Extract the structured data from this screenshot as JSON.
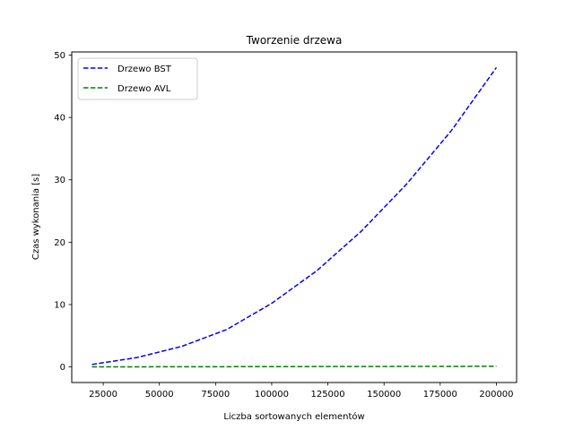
{
  "chart_data": {
    "type": "line",
    "title": "Tworzenie drzewa",
    "xlabel": "Liczba sortowanych elementów",
    "ylabel": "Czas wykonania [s]",
    "xlim": [
      11000,
      209000
    ],
    "ylim": [
      -2.5,
      50.5
    ],
    "xticks": [
      25000,
      50000,
      75000,
      100000,
      125000,
      150000,
      175000,
      200000
    ],
    "yticks": [
      0,
      10,
      20,
      30,
      40,
      50
    ],
    "x": [
      20000,
      40000,
      60000,
      80000,
      100000,
      120000,
      140000,
      160000,
      180000,
      200000
    ],
    "series": [
      {
        "name": "Drzewo BST",
        "color": "#0000ff",
        "dash": "dashed",
        "values": [
          0.4,
          1.5,
          3.3,
          6.0,
          10.2,
          15.4,
          21.8,
          29.3,
          37.9,
          48.0
        ]
      },
      {
        "name": "Drzewo AVL",
        "color": "#008000",
        "dash": "dashed",
        "values": [
          0.01,
          0.02,
          0.03,
          0.04,
          0.05,
          0.06,
          0.07,
          0.08,
          0.09,
          0.1
        ]
      }
    ],
    "legend": "top-left",
    "grid": false
  }
}
